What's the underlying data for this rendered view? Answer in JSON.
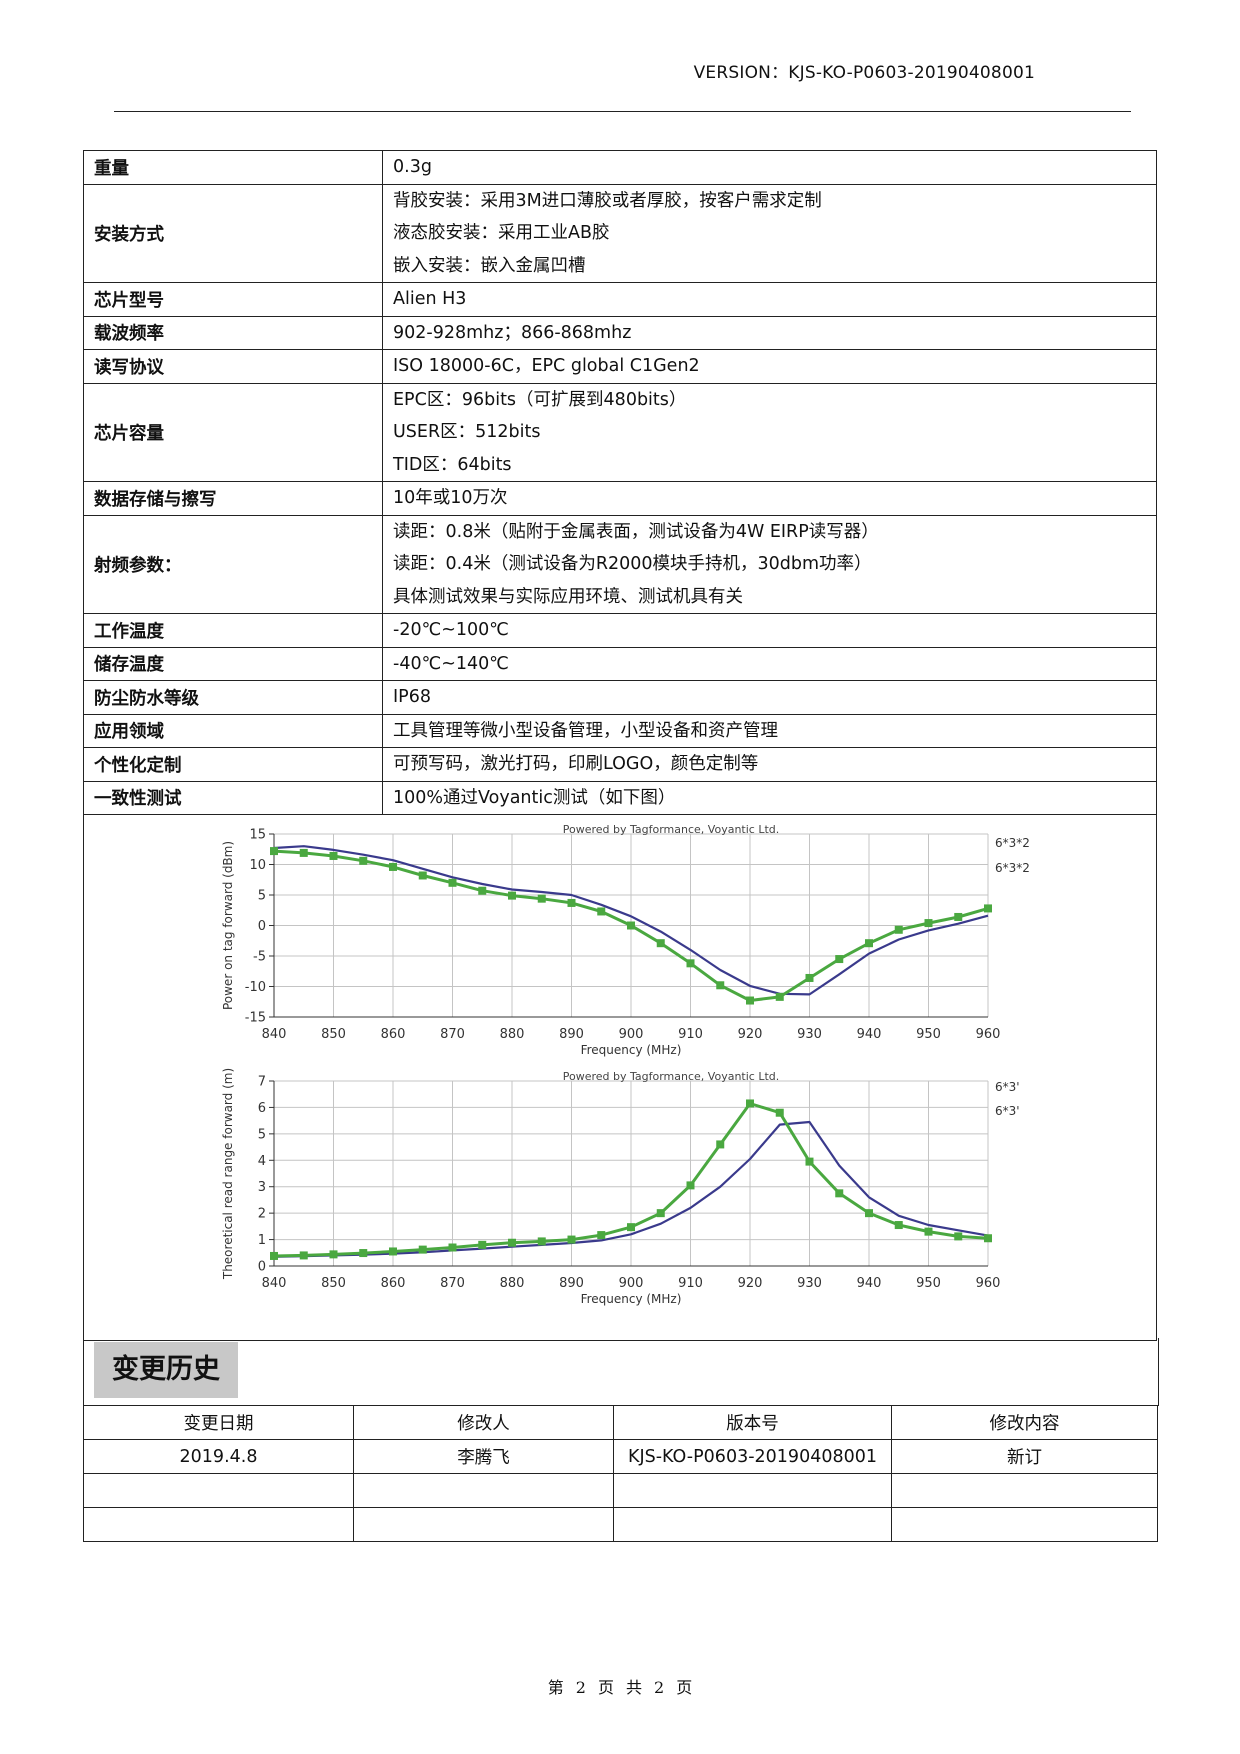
{
  "header": {
    "version": "VERSION：KJS-KO-P0603-20190408001"
  },
  "specs": {
    "weight": {
      "label": "重量",
      "value": "0.3g"
    },
    "mount": {
      "label": "安装方式",
      "lines": [
        "背胶安装：采用3M进口薄胶或者厚胶，按客户需求定制",
        "液态胶安装：采用工业AB胶",
        "嵌入安装：嵌入金属凹槽"
      ]
    },
    "chip_model": {
      "label": "芯片型号",
      "value": "Alien H3"
    },
    "carrier_freq": {
      "label": "载波频率",
      "value": "902-928mhz；866-868mhz"
    },
    "protocol": {
      "label": "读写协议",
      "value": "ISO 18000-6C，EPC global C1Gen2"
    },
    "chip_capacity": {
      "label": "芯片容量",
      "lines": [
        "EPC区：96bits（可扩展到480bits）",
        "USER区：512bits",
        "TID区：64bits"
      ]
    },
    "data_storage": {
      "label": "数据存储与擦写",
      "value": "10年或10万次"
    },
    "rf_params": {
      "label": "射频参数：",
      "lines": [
        "读距：0.8米（贴附于金属表面，测试设备为4W EIRP读写器）",
        "读距：0.4米（测试设备为R2000模块手持机，30dbm功率）",
        "具体测试效果与实际应用环境、测试机具有关"
      ]
    },
    "work_temp": {
      "label": "工作温度",
      "value": "-20℃~100℃"
    },
    "storage_temp": {
      "label": "储存温度",
      "value": "-40℃~140℃"
    },
    "ip_rating": {
      "label": "防尘防水等级",
      "value": "IP68"
    },
    "application": {
      "label": "应用领域",
      "value": "工具管理等微小型设备管理，小型设备和资产管理"
    },
    "customization": {
      "label": "个性化定制",
      "value": "可预写码，激光打码，印刷LOGO，颜色定制等"
    },
    "consistency": {
      "label": "一致性测试",
      "value": "100%通过Voyantic测试（如下图）"
    }
  },
  "history": {
    "title": "变更历史",
    "columns": [
      "变更日期",
      "修改人",
      "版本号",
      "修改内容"
    ],
    "rows": [
      [
        "2019.4.8",
        "李腾飞",
        "KJS-KO-P0603-20190408001",
        "新订"
      ],
      [
        "",
        "",
        "",
        ""
      ],
      [
        "",
        "",
        "",
        ""
      ]
    ]
  },
  "footer": {
    "prefix": "第",
    "page": "2",
    "mid1": "页",
    "total_prefix": "共",
    "total": "2",
    "suffix": "页"
  },
  "chart_data": [
    {
      "type": "line",
      "title": "Powered by Tagformance, Voyantic Ltd.",
      "xlabel": "Frequency (MHz)",
      "ylabel": "Power on tag forward (dBm)",
      "xlim": [
        840,
        960
      ],
      "ylim": [
        -15,
        15
      ],
      "xticks": [
        840,
        850,
        860,
        870,
        880,
        890,
        900,
        910,
        920,
        930,
        940,
        950,
        960
      ],
      "yticks": [
        -15,
        -10,
        -5,
        0,
        5,
        10,
        15
      ],
      "grid": true,
      "legend_position": "right",
      "x": [
        840,
        845,
        850,
        855,
        860,
        865,
        870,
        875,
        880,
        885,
        890,
        895,
        900,
        905,
        910,
        915,
        920,
        925,
        930,
        935,
        940,
        945,
        950,
        955,
        960
      ],
      "series": [
        {
          "name": "6*3*2",
          "color": "#4aa840",
          "markers": true,
          "values": [
            12.2,
            11.9,
            11.4,
            10.6,
            9.6,
            8.2,
            7.0,
            5.7,
            4.9,
            4.4,
            3.7,
            2.3,
            0.0,
            -2.9,
            -6.2,
            -9.8,
            -12.3,
            -11.7,
            -8.6,
            -5.5,
            -2.9,
            -0.7,
            0.4,
            1.4,
            2.8
          ]
        },
        {
          "name": "6*3*2",
          "color": "#3a3a8c",
          "markers": false,
          "values": [
            12.7,
            13.0,
            12.4,
            11.6,
            10.7,
            9.3,
            7.9,
            6.8,
            5.9,
            5.5,
            5.0,
            3.4,
            1.5,
            -1.0,
            -4.0,
            -7.3,
            -9.9,
            -11.2,
            -11.3,
            -8.0,
            -4.6,
            -2.3,
            -0.8,
            0.3,
            1.6
          ]
        }
      ]
    },
    {
      "type": "line",
      "title": "Powered by Tagformance, Voyantic Ltd.",
      "xlabel": "Frequency (MHz)",
      "ylabel": "Theoretical read range forward (m)",
      "xlim": [
        840,
        960
      ],
      "ylim": [
        0,
        7
      ],
      "xticks": [
        840,
        850,
        860,
        870,
        880,
        890,
        900,
        910,
        920,
        930,
        940,
        950,
        960
      ],
      "yticks": [
        0,
        1,
        2,
        3,
        4,
        5,
        6,
        7
      ],
      "grid": true,
      "legend_position": "right",
      "x": [
        840,
        845,
        850,
        855,
        860,
        865,
        870,
        875,
        880,
        885,
        890,
        895,
        900,
        905,
        910,
        915,
        920,
        925,
        930,
        935,
        940,
        945,
        950,
        955,
        960
      ],
      "series": [
        {
          "name": "6*3'",
          "color": "#4aa840",
          "markers": true,
          "values": [
            0.38,
            0.4,
            0.44,
            0.49,
            0.55,
            0.62,
            0.7,
            0.8,
            0.88,
            0.93,
            1.0,
            1.17,
            1.47,
            2.0,
            3.05,
            4.6,
            6.15,
            5.8,
            3.95,
            2.75,
            2.0,
            1.55,
            1.3,
            1.12,
            1.05
          ]
        },
        {
          "name": "6*3'",
          "color": "#3a3a8c",
          "markers": false,
          "values": [
            0.35,
            0.37,
            0.4,
            0.43,
            0.47,
            0.52,
            0.59,
            0.66,
            0.73,
            0.8,
            0.87,
            0.97,
            1.2,
            1.6,
            2.2,
            3.0,
            4.05,
            5.35,
            5.45,
            3.8,
            2.6,
            1.9,
            1.55,
            1.35,
            1.15
          ]
        }
      ]
    }
  ]
}
